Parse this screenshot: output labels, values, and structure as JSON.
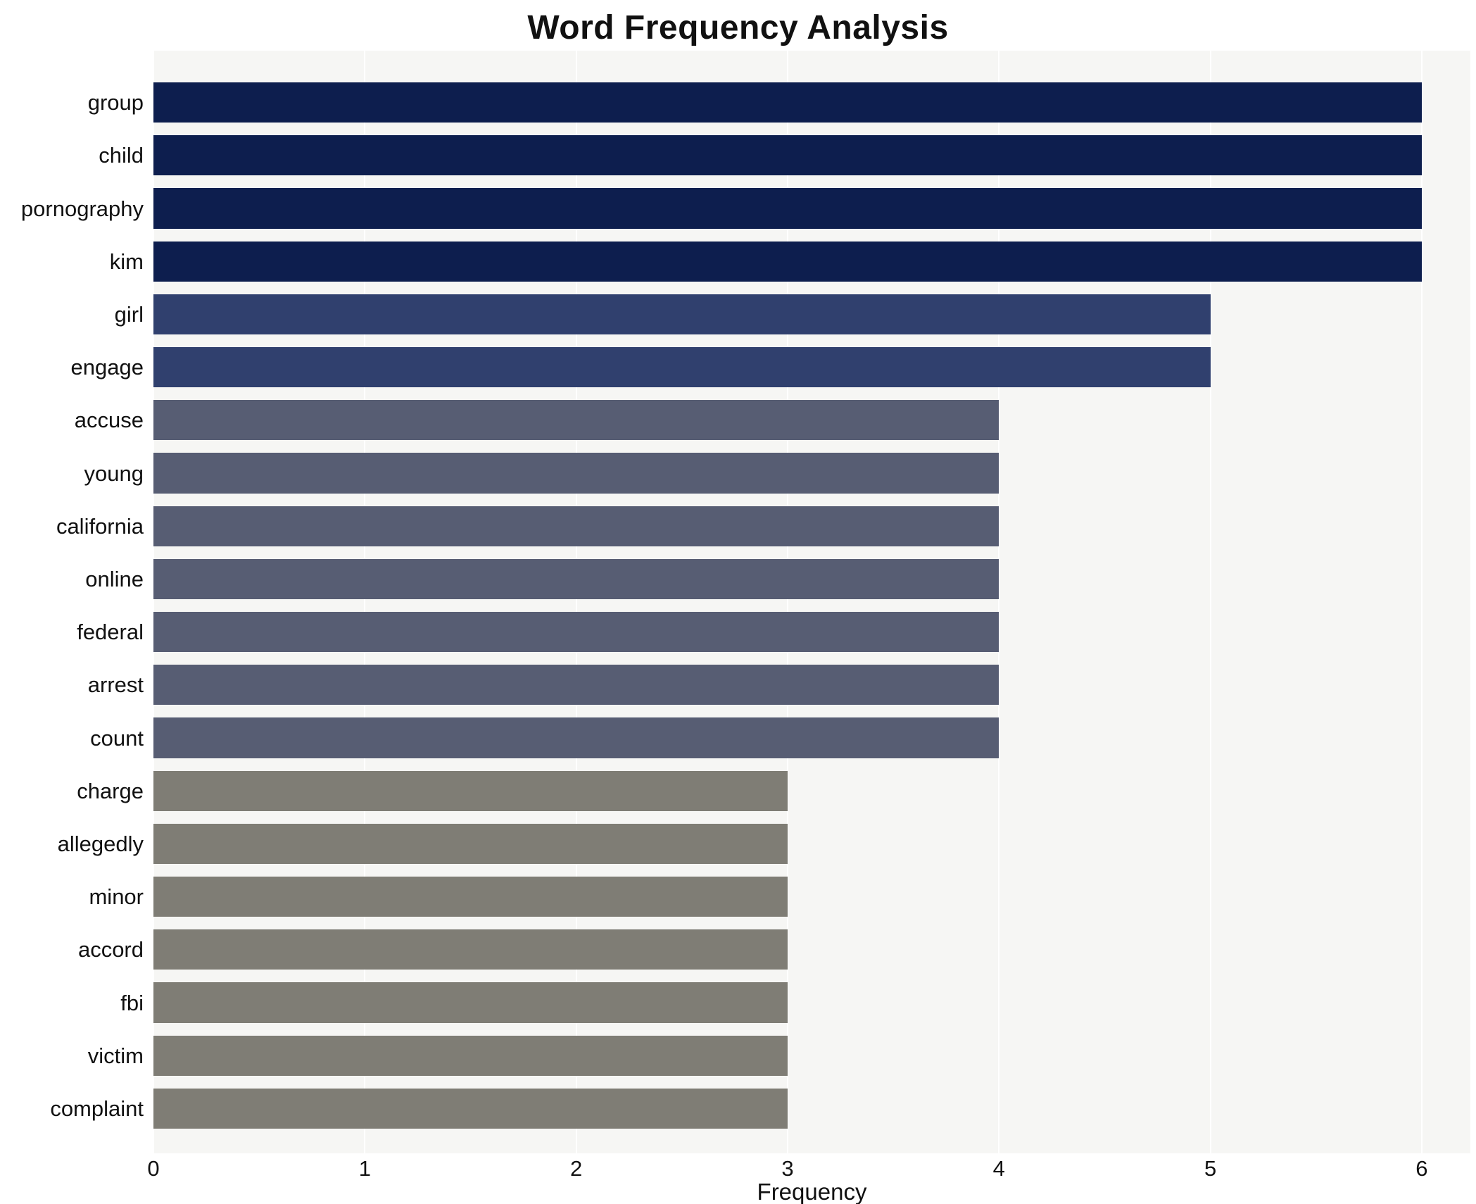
{
  "chart_data": {
    "type": "bar",
    "orientation": "horizontal",
    "title": "Word Frequency Analysis",
    "xlabel": "Frequency",
    "ylabel": "",
    "categories": [
      "group",
      "child",
      "pornography",
      "kim",
      "girl",
      "engage",
      "accuse",
      "young",
      "california",
      "online",
      "federal",
      "arrest",
      "count",
      "charge",
      "allegedly",
      "minor",
      "accord",
      "fbi",
      "victim",
      "complaint"
    ],
    "values": [
      6,
      6,
      6,
      6,
      5,
      5,
      4,
      4,
      4,
      4,
      4,
      4,
      4,
      3,
      3,
      3,
      3,
      3,
      3,
      3
    ],
    "x_ticks": [
      0,
      1,
      2,
      3,
      4,
      5,
      6
    ],
    "xlim": [
      0,
      6.23
    ],
    "grid": "on",
    "legend_position": "none",
    "colors_by_value": {
      "6": "#0d1e4e",
      "5": "#30406e",
      "4": "#575d73",
      "3": "#7f7d75"
    },
    "plot_background": "#f6f6f4",
    "grid_color": "#ffffff",
    "text_color": "#111111"
  }
}
